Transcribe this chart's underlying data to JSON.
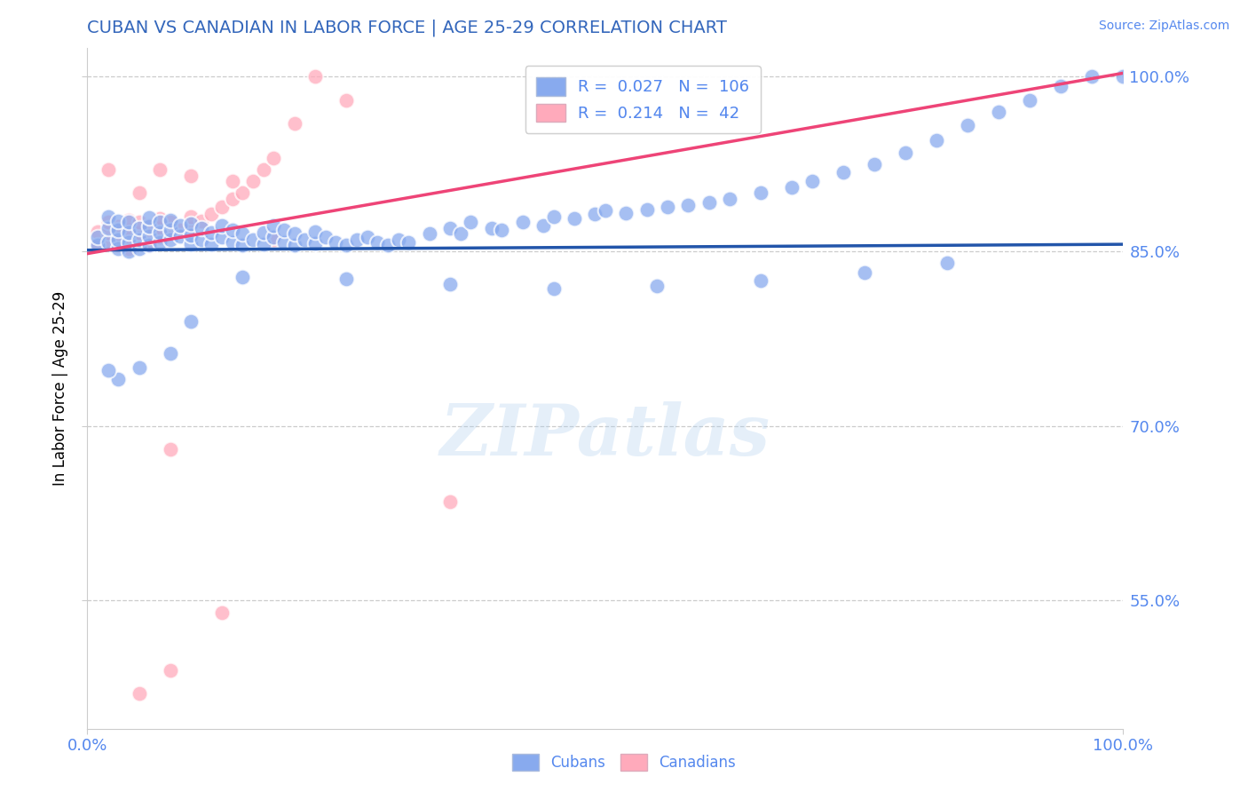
{
  "title": "CUBAN VS CANADIAN IN LABOR FORCE | AGE 25-29 CORRELATION CHART",
  "source_text": "Source: ZipAtlas.com",
  "ylabel": "In Labor Force | Age 25-29",
  "title_color": "#3366bb",
  "axis_color": "#5588ee",
  "grid_color": "#cccccc",
  "watermark": "ZIPatlas",
  "legend_R_blue": "0.027",
  "legend_N_blue": "106",
  "legend_R_pink": "0.214",
  "legend_N_pink": "42",
  "blue_dot_color": "#88aaee",
  "pink_dot_color": "#ffaabb",
  "blue_line_color": "#2255aa",
  "pink_line_color": "#ee4477",
  "xlim": [
    0.0,
    1.0
  ],
  "ylim": [
    0.44,
    1.025
  ],
  "yticks": [
    0.55,
    0.7,
    0.85,
    1.0
  ],
  "ytick_labels": [
    "55.0%",
    "70.0%",
    "85.0%",
    "100.0%"
  ],
  "xticks": [
    0.0,
    1.0
  ],
  "xtick_labels": [
    "0.0%",
    "100.0%"
  ],
  "blue_x": [
    0.01,
    0.01,
    0.02,
    0.02,
    0.02,
    0.03,
    0.03,
    0.03,
    0.03,
    0.04,
    0.04,
    0.04,
    0.04,
    0.05,
    0.05,
    0.05,
    0.06,
    0.06,
    0.06,
    0.06,
    0.07,
    0.07,
    0.07,
    0.08,
    0.08,
    0.08,
    0.09,
    0.09,
    0.1,
    0.1,
    0.1,
    0.11,
    0.11,
    0.12,
    0.12,
    0.13,
    0.13,
    0.14,
    0.14,
    0.15,
    0.15,
    0.16,
    0.17,
    0.17,
    0.18,
    0.18,
    0.19,
    0.19,
    0.2,
    0.2,
    0.21,
    0.22,
    0.22,
    0.23,
    0.24,
    0.25,
    0.26,
    0.27,
    0.28,
    0.29,
    0.3,
    0.31,
    0.33,
    0.35,
    0.36,
    0.37,
    0.39,
    0.4,
    0.42,
    0.44,
    0.45,
    0.47,
    0.49,
    0.5,
    0.52,
    0.54,
    0.56,
    0.58,
    0.6,
    0.62,
    0.65,
    0.68,
    0.7,
    0.73,
    0.76,
    0.79,
    0.82,
    0.85,
    0.88,
    0.91,
    0.94,
    0.97,
    1.0,
    0.83,
    0.75,
    0.65,
    0.55,
    0.45,
    0.35,
    0.25,
    0.15,
    0.1,
    0.08,
    0.05,
    0.03,
    0.02
  ],
  "blue_y": [
    0.855,
    0.862,
    0.858,
    0.87,
    0.88,
    0.852,
    0.86,
    0.868,
    0.876,
    0.85,
    0.858,
    0.866,
    0.875,
    0.852,
    0.86,
    0.87,
    0.855,
    0.863,
    0.871,
    0.879,
    0.858,
    0.866,
    0.875,
    0.86,
    0.868,
    0.877,
    0.863,
    0.872,
    0.856,
    0.864,
    0.874,
    0.86,
    0.87,
    0.856,
    0.866,
    0.862,
    0.872,
    0.858,
    0.868,
    0.855,
    0.865,
    0.86,
    0.856,
    0.866,
    0.862,
    0.872,
    0.858,
    0.868,
    0.855,
    0.865,
    0.86,
    0.857,
    0.867,
    0.862,
    0.858,
    0.855,
    0.86,
    0.862,
    0.858,
    0.855,
    0.86,
    0.858,
    0.865,
    0.87,
    0.865,
    0.875,
    0.87,
    0.868,
    0.875,
    0.872,
    0.88,
    0.878,
    0.882,
    0.885,
    0.883,
    0.886,
    0.888,
    0.89,
    0.892,
    0.895,
    0.9,
    0.905,
    0.91,
    0.918,
    0.925,
    0.935,
    0.945,
    0.958,
    0.97,
    0.98,
    0.992,
    1.0,
    1.0,
    0.84,
    0.832,
    0.825,
    0.82,
    0.818,
    0.822,
    0.826,
    0.828,
    0.79,
    0.762,
    0.75,
    0.74,
    0.748
  ],
  "pink_x": [
    0.01,
    0.01,
    0.02,
    0.02,
    0.02,
    0.03,
    0.03,
    0.03,
    0.04,
    0.04,
    0.04,
    0.04,
    0.05,
    0.05,
    0.05,
    0.06,
    0.06,
    0.06,
    0.07,
    0.07,
    0.07,
    0.08,
    0.08,
    0.09,
    0.1,
    0.1,
    0.11,
    0.12,
    0.13,
    0.14,
    0.15,
    0.16,
    0.17,
    0.18,
    0.2,
    0.22,
    0.25,
    0.08,
    0.13,
    0.35,
    0.05,
    0.08
  ],
  "pink_y": [
    0.857,
    0.867,
    0.858,
    0.866,
    0.875,
    0.855,
    0.863,
    0.871,
    0.852,
    0.86,
    0.868,
    0.877,
    0.858,
    0.866,
    0.875,
    0.855,
    0.863,
    0.872,
    0.862,
    0.87,
    0.878,
    0.865,
    0.875,
    0.868,
    0.87,
    0.88,
    0.876,
    0.882,
    0.888,
    0.895,
    0.9,
    0.91,
    0.92,
    0.93,
    0.96,
    1.0,
    0.98,
    0.68,
    0.54,
    0.635,
    0.47,
    0.49
  ],
  "pink_extra_x": [
    0.02,
    0.05,
    0.07,
    0.1,
    0.14,
    0.18
  ],
  "pink_extra_y": [
    0.92,
    0.9,
    0.92,
    0.915,
    0.91,
    0.86
  ],
  "blue_line_y0": 0.851,
  "blue_line_y1": 0.856,
  "pink_line_y0": 0.848,
  "pink_line_y1": 1.003
}
